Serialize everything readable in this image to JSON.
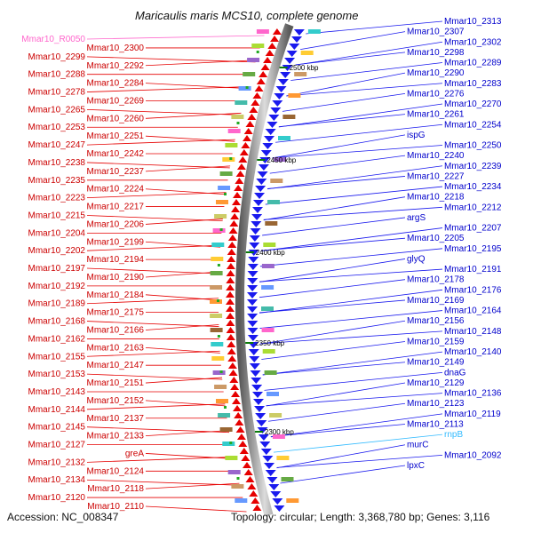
{
  "title": "Maricaulis maris MCS10, complete genome",
  "footer": {
    "accession": "Accession: NC_008347",
    "topology": "Topology: circular; Length: 3,368,780 bp; Genes: 3,116"
  },
  "colors": {
    "plus_strand": "#e60000",
    "minus_strand": "#1a1aee",
    "rna_label": "#ff66cc",
    "rnpB_label": "#33bbff",
    "backbone": "#9a9a9a"
  },
  "scale_marks": [
    "2500 kbp",
    "2450 kbp",
    "2400 kbp",
    "2350 kbp",
    "2300 kbp"
  ],
  "left_labels": [
    {
      "text": "Mmar10_R0050",
      "kind": "rna"
    },
    {
      "text": "Mmar10_2300",
      "kind": "plus"
    },
    {
      "text": "Mmar10_2299",
      "kind": "plus"
    },
    {
      "text": "Mmar10_2292",
      "kind": "plus"
    },
    {
      "text": "Mmar10_2288",
      "kind": "plus"
    },
    {
      "text": "Mmar10_2284",
      "kind": "plus"
    },
    {
      "text": "Mmar10_2278",
      "kind": "plus"
    },
    {
      "text": "Mmar10_2269",
      "kind": "plus"
    },
    {
      "text": "Mmar10_2265",
      "kind": "plus"
    },
    {
      "text": "Mmar10_2260",
      "kind": "plus"
    },
    {
      "text": "Mmar10_2253",
      "kind": "plus"
    },
    {
      "text": "Mmar10_2251",
      "kind": "plus"
    },
    {
      "text": "Mmar10_2247",
      "kind": "plus"
    },
    {
      "text": "Mmar10_2242",
      "kind": "plus"
    },
    {
      "text": "Mmar10_2238",
      "kind": "plus"
    },
    {
      "text": "Mmar10_2237",
      "kind": "plus"
    },
    {
      "text": "Mmar10_2235",
      "kind": "plus"
    },
    {
      "text": "Mmar10_2224",
      "kind": "plus"
    },
    {
      "text": "Mmar10_2223",
      "kind": "plus"
    },
    {
      "text": "Mmar10_2217",
      "kind": "plus"
    },
    {
      "text": "Mmar10_2215",
      "kind": "plus"
    },
    {
      "text": "Mmar10_2206",
      "kind": "plus"
    },
    {
      "text": "Mmar10_2204",
      "kind": "plus"
    },
    {
      "text": "Mmar10_2199",
      "kind": "plus"
    },
    {
      "text": "Mmar10_2202",
      "kind": "plus"
    },
    {
      "text": "Mmar10_2194",
      "kind": "plus"
    },
    {
      "text": "Mmar10_2197",
      "kind": "plus"
    },
    {
      "text": "Mmar10_2190",
      "kind": "plus"
    },
    {
      "text": "Mmar10_2192",
      "kind": "plus"
    },
    {
      "text": "Mmar10_2184",
      "kind": "plus"
    },
    {
      "text": "Mmar10_2189",
      "kind": "plus"
    },
    {
      "text": "Mmar10_2175",
      "kind": "plus"
    },
    {
      "text": "Mmar10_2168",
      "kind": "plus"
    },
    {
      "text": "Mmar10_2166",
      "kind": "plus"
    },
    {
      "text": "Mmar10_2162",
      "kind": "plus"
    },
    {
      "text": "Mmar10_2163",
      "kind": "plus"
    },
    {
      "text": "Mmar10_2155",
      "kind": "plus"
    },
    {
      "text": "Mmar10_2147",
      "kind": "plus"
    },
    {
      "text": "Mmar10_2153",
      "kind": "plus"
    },
    {
      "text": "Mmar10_2151",
      "kind": "plus"
    },
    {
      "text": "Mmar10_2143",
      "kind": "plus"
    },
    {
      "text": "Mmar10_2152",
      "kind": "plus"
    },
    {
      "text": "Mmar10_2144",
      "kind": "plus"
    },
    {
      "text": "Mmar10_2137",
      "kind": "plus"
    },
    {
      "text": "Mmar10_2145",
      "kind": "plus"
    },
    {
      "text": "Mmar10_2133",
      "kind": "plus"
    },
    {
      "text": "Mmar10_2127",
      "kind": "plus"
    },
    {
      "text": "greA",
      "kind": "plus"
    },
    {
      "text": "Mmar10_2132",
      "kind": "plus"
    },
    {
      "text": "Mmar10_2124",
      "kind": "plus"
    },
    {
      "text": "Mmar10_2134",
      "kind": "plus"
    },
    {
      "text": "Mmar10_2118",
      "kind": "plus"
    },
    {
      "text": "Mmar10_2120",
      "kind": "plus"
    },
    {
      "text": "Mmar10_2110",
      "kind": "plus"
    }
  ],
  "right_labels": [
    {
      "text": "Mmar10_2313",
      "kind": "minus"
    },
    {
      "text": "Mmar10_2307",
      "kind": "minus"
    },
    {
      "text": "Mmar10_2302",
      "kind": "minus"
    },
    {
      "text": "Mmar10_2298",
      "kind": "minus"
    },
    {
      "text": "Mmar10_2289",
      "kind": "minus"
    },
    {
      "text": "Mmar10_2290",
      "kind": "minus"
    },
    {
      "text": "Mmar10_2283",
      "kind": "minus"
    },
    {
      "text": "Mmar10_2276",
      "kind": "minus"
    },
    {
      "text": "Mmar10_2270",
      "kind": "minus"
    },
    {
      "text": "Mmar10_2261",
      "kind": "minus"
    },
    {
      "text": "Mmar10_2254",
      "kind": "minus"
    },
    {
      "text": "ispG",
      "kind": "minus"
    },
    {
      "text": "Mmar10_2250",
      "kind": "minus"
    },
    {
      "text": "Mmar10_2240",
      "kind": "minus"
    },
    {
      "text": "Mmar10_2239",
      "kind": "minus"
    },
    {
      "text": "Mmar10_2227",
      "kind": "minus"
    },
    {
      "text": "Mmar10_2234",
      "kind": "minus"
    },
    {
      "text": "Mmar10_2218",
      "kind": "minus"
    },
    {
      "text": "Mmar10_2212",
      "kind": "minus"
    },
    {
      "text": "argS",
      "kind": "minus"
    },
    {
      "text": "Mmar10_2207",
      "kind": "minus"
    },
    {
      "text": "Mmar10_2205",
      "kind": "minus"
    },
    {
      "text": "Mmar10_2195",
      "kind": "minus"
    },
    {
      "text": "glyQ",
      "kind": "minus"
    },
    {
      "text": "Mmar10_2191",
      "kind": "minus"
    },
    {
      "text": "Mmar10_2178",
      "kind": "minus"
    },
    {
      "text": "Mmar10_2176",
      "kind": "minus"
    },
    {
      "text": "Mmar10_2169",
      "kind": "minus"
    },
    {
      "text": "Mmar10_2164",
      "kind": "minus"
    },
    {
      "text": "Mmar10_2156",
      "kind": "minus"
    },
    {
      "text": "Mmar10_2148",
      "kind": "minus"
    },
    {
      "text": "Mmar10_2159",
      "kind": "minus"
    },
    {
      "text": "Mmar10_2140",
      "kind": "minus"
    },
    {
      "text": "Mmar10_2149",
      "kind": "minus"
    },
    {
      "text": "dnaG",
      "kind": "minus"
    },
    {
      "text": "Mmar10_2129",
      "kind": "minus"
    },
    {
      "text": "Mmar10_2136",
      "kind": "minus"
    },
    {
      "text": "Mmar10_2123",
      "kind": "minus"
    },
    {
      "text": "Mmar10_2119",
      "kind": "minus"
    },
    {
      "text": "Mmar10_2113",
      "kind": "minus"
    },
    {
      "text": "rnpB",
      "kind": "rnpB"
    },
    {
      "text": "murC",
      "kind": "minus"
    },
    {
      "text": "Mmar10_2092",
      "kind": "minus"
    },
    {
      "text": "lpxC",
      "kind": "minus"
    }
  ]
}
